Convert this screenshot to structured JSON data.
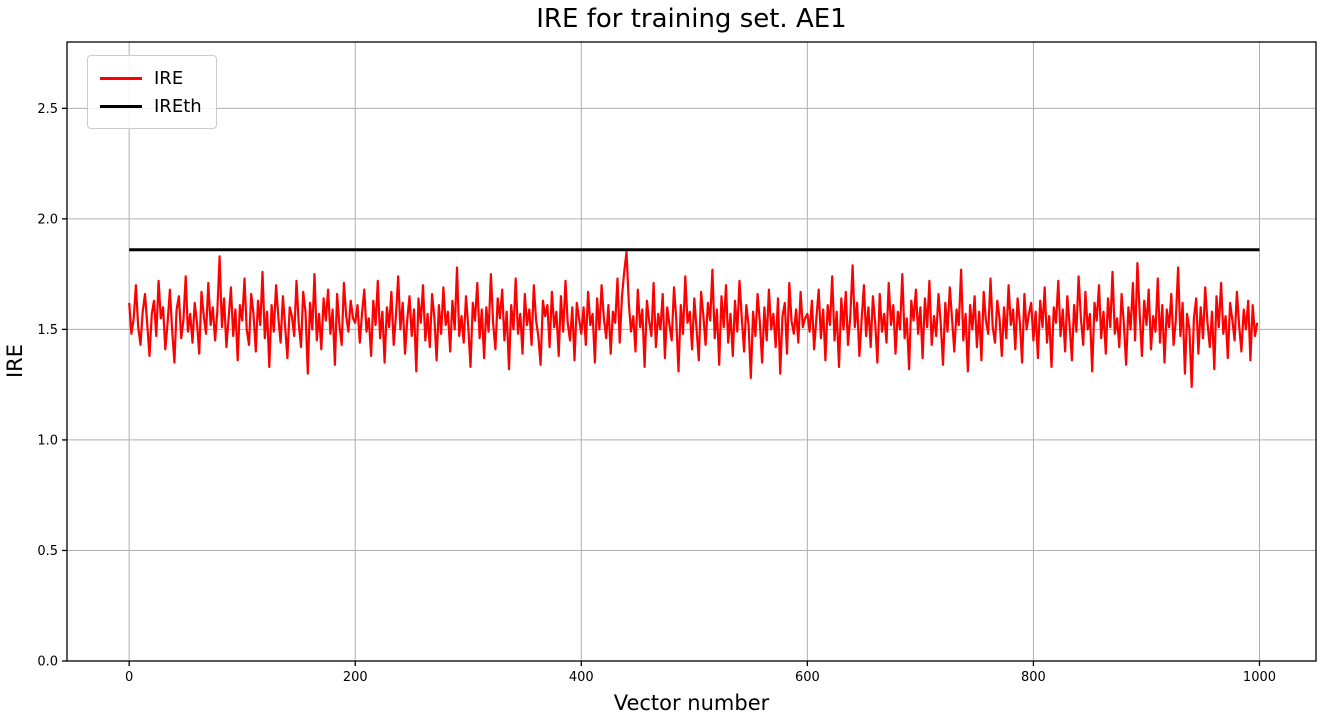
{
  "chart_data": {
    "type": "line",
    "title": "IRE for training set. AE1",
    "x_axis": {
      "label": "Vector number",
      "ticks": [
        {
          "value": 0,
          "label": "0"
        },
        {
          "value": 200,
          "label": "200"
        },
        {
          "value": 400,
          "label": "400"
        },
        {
          "value": 600,
          "label": "600"
        },
        {
          "value": 800,
          "label": "800"
        },
        {
          "value": 1000,
          "label": "1000"
        }
      ]
    },
    "y_axis": {
      "label": "IRE",
      "ticks": [
        {
          "value": 0.0,
          "label": "0.0"
        },
        {
          "value": 0.5,
          "label": "0.5"
        },
        {
          "value": 1.0,
          "label": "1.0"
        },
        {
          "value": 1.5,
          "label": "1.5"
        },
        {
          "value": 2.0,
          "label": "2.0"
        },
        {
          "value": 2.5,
          "label": "2.5"
        }
      ]
    },
    "xlim": [
      -55,
      1050
    ],
    "ylim": [
      0,
      2.8
    ],
    "grid": true,
    "grid_color": "#b0b0b0",
    "spine_color": "#000000",
    "legend": {
      "position": "upper-left",
      "entries": [
        {
          "label": "IRE",
          "color": "#ff0000"
        },
        {
          "label": "IREth",
          "color": "#000000"
        }
      ]
    },
    "series": [
      {
        "name": "IRE",
        "kind": "noisy-line",
        "color": "#ff0000",
        "line_width": 2.2,
        "x_start": 0,
        "x_step": 2,
        "values": [
          1.62,
          1.48,
          1.55,
          1.7,
          1.51,
          1.43,
          1.58,
          1.66,
          1.52,
          1.38,
          1.57,
          1.63,
          1.47,
          1.72,
          1.55,
          1.6,
          1.41,
          1.53,
          1.68,
          1.5,
          1.35,
          1.59,
          1.65,
          1.46,
          1.54,
          1.74,
          1.49,
          1.57,
          1.44,
          1.62,
          1.53,
          1.39,
          1.67,
          1.56,
          1.48,
          1.71,
          1.52,
          1.6,
          1.45,
          1.58,
          1.83,
          1.51,
          1.64,
          1.42,
          1.55,
          1.69,
          1.47,
          1.59,
          1.36,
          1.61,
          1.54,
          1.73,
          1.5,
          1.43,
          1.66,
          1.57,
          1.4,
          1.63,
          1.52,
          1.76,
          1.46,
          1.58,
          1.33,
          1.61,
          1.49,
          1.7,
          1.55,
          1.44,
          1.65,
          1.51,
          1.37,
          1.6,
          1.56,
          1.47,
          1.72,
          1.53,
          1.42,
          1.67,
          1.58,
          1.3,
          1.62,
          1.5,
          1.75,
          1.45,
          1.57,
          1.41,
          1.64,
          1.54,
          1.68,
          1.48,
          1.59,
          1.34,
          1.66,
          1.52,
          1.43,
          1.71,
          1.56,
          1.49,
          1.63,
          1.55,
          1.53,
          1.61,
          1.44,
          1.57,
          1.68,
          1.49,
          1.55,
          1.38,
          1.63,
          1.52,
          1.72,
          1.46,
          1.58,
          1.35,
          1.6,
          1.51,
          1.67,
          1.43,
          1.56,
          1.74,
          1.5,
          1.62,
          1.39,
          1.54,
          1.65,
          1.47,
          1.59,
          1.31,
          1.64,
          1.53,
          1.7,
          1.45,
          1.57,
          1.42,
          1.66,
          1.55,
          1.36,
          1.61,
          1.48,
          1.69,
          1.52,
          1.58,
          1.4,
          1.63,
          1.5,
          1.78,
          1.47,
          1.56,
          1.44,
          1.65,
          1.51,
          1.33,
          1.62,
          1.54,
          1.71,
          1.46,
          1.59,
          1.37,
          1.6,
          1.49,
          1.75,
          1.53,
          1.41,
          1.64,
          1.55,
          1.68,
          1.45,
          1.58,
          1.32,
          1.61,
          1.5,
          1.73,
          1.48,
          1.57,
          1.39,
          1.66,
          1.52,
          1.59,
          1.43,
          1.7,
          1.54,
          1.47,
          1.34,
          1.63,
          1.56,
          1.61,
          1.42,
          1.67,
          1.51,
          1.58,
          1.38,
          1.65,
          1.49,
          1.72,
          1.53,
          1.45,
          1.6,
          1.36,
          1.62,
          1.55,
          1.48,
          1.6,
          1.43,
          1.67,
          1.52,
          1.57,
          1.35,
          1.64,
          1.5,
          1.7,
          1.55,
          1.46,
          1.61,
          1.39,
          1.58,
          1.53,
          1.73,
          1.44,
          1.65,
          1.76,
          1.85,
          1.62,
          1.49,
          1.56,
          1.4,
          1.68,
          1.51,
          1.59,
          1.33,
          1.63,
          1.54,
          1.47,
          1.71,
          1.42,
          1.57,
          1.5,
          1.66,
          1.37,
          1.6,
          1.52,
          1.45,
          1.69,
          1.55,
          1.31,
          1.61,
          1.48,
          1.74,
          1.53,
          1.58,
          1.41,
          1.64,
          1.5,
          1.36,
          1.67,
          1.56,
          1.43,
          1.62,
          1.54,
          1.77,
          1.46,
          1.59,
          1.34,
          1.65,
          1.51,
          1.7,
          1.44,
          1.57,
          1.38,
          1.63,
          1.49,
          1.72,
          1.55,
          1.4,
          1.61,
          1.52,
          1.28,
          1.58,
          1.47,
          1.66,
          1.53,
          1.35,
          1.6,
          1.45,
          1.68,
          1.5,
          1.57,
          1.42,
          1.64,
          1.3,
          1.56,
          1.62,
          1.39,
          1.71,
          1.54,
          1.48,
          1.59,
          1.44,
          1.67,
          1.51,
          1.55,
          1.57,
          1.49,
          1.63,
          1.41,
          1.55,
          1.68,
          1.46,
          1.59,
          1.36,
          1.61,
          1.52,
          1.74,
          1.45,
          1.58,
          1.33,
          1.64,
          1.5,
          1.67,
          1.43,
          1.56,
          1.79,
          1.51,
          1.62,
          1.38,
          1.54,
          1.7,
          1.47,
          1.6,
          1.42,
          1.65,
          1.53,
          1.35,
          1.66,
          1.49,
          1.57,
          1.44,
          1.71,
          1.52,
          1.61,
          1.39,
          1.58,
          1.5,
          1.75,
          1.46,
          1.55,
          1.32,
          1.63,
          1.54,
          1.68,
          1.48,
          1.6,
          1.37,
          1.64,
          1.51,
          1.72,
          1.43,
          1.56,
          1.47,
          1.66,
          1.53,
          1.34,
          1.62,
          1.49,
          1.69,
          1.55,
          1.4,
          1.59,
          1.52,
          1.77,
          1.45,
          1.57,
          1.31,
          1.61,
          1.5,
          1.65,
          1.42,
          1.58,
          1.36,
          1.67,
          1.54,
          1.48,
          1.73,
          1.51,
          1.44,
          1.63,
          1.55,
          1.38,
          1.6,
          1.46,
          1.7,
          1.52,
          1.59,
          1.41,
          1.64,
          1.53,
          1.35,
          1.66,
          1.5,
          1.57,
          1.62,
          1.45,
          1.58,
          1.37,
          1.63,
          1.51,
          1.69,
          1.44,
          1.56,
          1.33,
          1.6,
          1.53,
          1.72,
          1.47,
          1.59,
          1.4,
          1.65,
          1.52,
          1.36,
          1.61,
          1.49,
          1.74,
          1.55,
          1.43,
          1.67,
          1.5,
          1.57,
          1.31,
          1.62,
          1.54,
          1.7,
          1.46,
          1.58,
          1.39,
          1.64,
          1.51,
          1.76,
          1.48,
          1.55,
          1.42,
          1.66,
          1.53,
          1.34,
          1.6,
          1.5,
          1.71,
          1.45,
          1.8,
          1.57,
          1.38,
          1.63,
          1.52,
          1.68,
          1.41,
          1.56,
          1.49,
          1.73,
          1.44,
          1.61,
          1.35,
          1.59,
          1.51,
          1.66,
          1.43,
          1.54,
          1.78,
          1.47,
          1.62,
          1.3,
          1.57,
          1.5,
          1.24,
          1.55,
          1.64,
          1.39,
          1.6,
          1.46,
          1.69,
          1.53,
          1.42,
          1.58,
          1.32,
          1.65,
          1.51,
          1.71,
          1.48,
          1.56,
          1.37,
          1.62,
          1.54,
          1.45,
          1.67,
          1.52,
          1.4,
          1.59,
          1.5,
          1.63,
          1.36,
          1.61,
          1.47,
          1.53
        ]
      },
      {
        "name": "IREth",
        "kind": "hline",
        "color": "#000000",
        "line_width": 3,
        "y": 1.86,
        "x_range": [
          0,
          1000
        ]
      }
    ]
  }
}
